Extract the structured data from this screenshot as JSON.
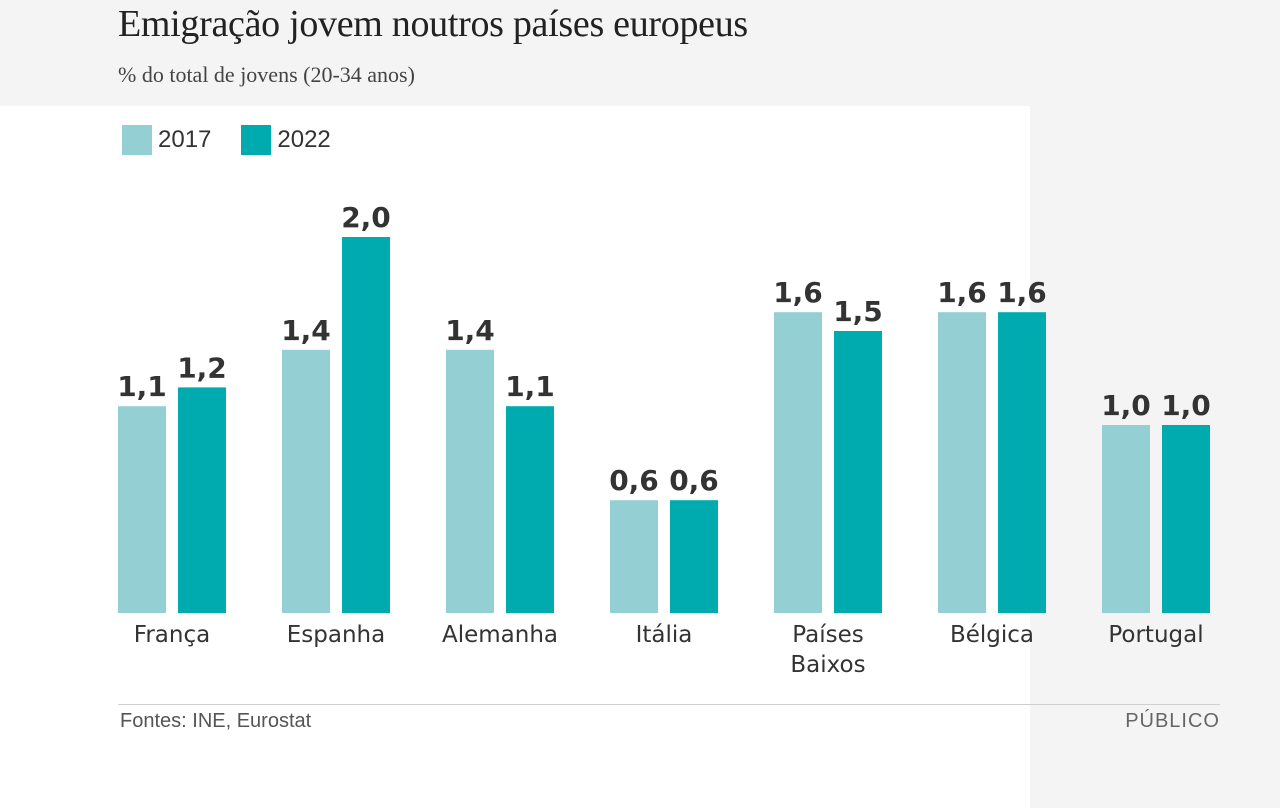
{
  "title": "Emigração jovem noutros países europeus",
  "subtitle": "% do total de jovens (20-34 anos)",
  "legend": [
    {
      "label": "2017",
      "color": "#94d0d3"
    },
    {
      "label": "2022",
      "color": "#00abb0"
    }
  ],
  "source": "Fontes: INE, Eurostat",
  "brand": "PÚBLICO",
  "chart_data": {
    "type": "bar",
    "title": "Emigração jovem noutros países europeus",
    "subtitle": "% do total de jovens (20-34 anos)",
    "categories": [
      [
        "França"
      ],
      [
        "Espanha"
      ],
      [
        "Alemanha"
      ],
      [
        "Itália"
      ],
      [
        "Países",
        "Baixos"
      ],
      [
        "Bélgica"
      ],
      [
        "Portugal"
      ]
    ],
    "series": [
      {
        "name": "2017",
        "color": "#94d0d3",
        "values": [
          1.1,
          1.4,
          1.4,
          0.6,
          1.6,
          1.6,
          1.0
        ],
        "labels": [
          "1,1",
          "1,4",
          "1,4",
          "0,6",
          "1,6",
          "1,6",
          "1,0"
        ]
      },
      {
        "name": "2022",
        "color": "#00abb0",
        "values": [
          1.2,
          2.0,
          1.1,
          0.6,
          1.5,
          1.6,
          1.0
        ],
        "labels": [
          "1,2",
          "2,0",
          "1,1",
          "0,6",
          "1,5",
          "1,6",
          "1,0"
        ]
      }
    ],
    "ylim": [
      0,
      2.0
    ],
    "xlabel": "",
    "ylabel": ""
  }
}
